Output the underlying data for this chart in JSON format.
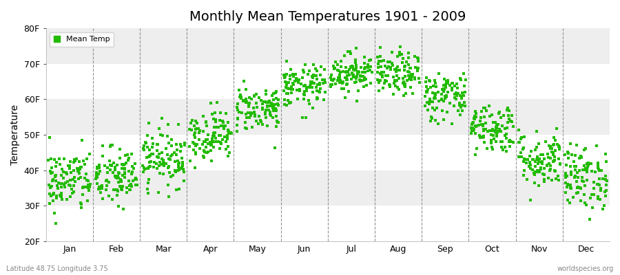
{
  "title": "Monthly Mean Temperatures 1901 - 2009",
  "ylabel": "Temperature",
  "ylim": [
    20,
    80
  ],
  "yticks": [
    20,
    30,
    40,
    50,
    60,
    70,
    80
  ],
  "ytick_labels": [
    "20F",
    "30F",
    "40F",
    "50F",
    "60F",
    "70F",
    "80F"
  ],
  "month_labels": [
    "Jan",
    "Feb",
    "Mar",
    "Apr",
    "May",
    "Jun",
    "Jul",
    "Aug",
    "Sep",
    "Oct",
    "Nov",
    "Dec"
  ],
  "dot_color": "#22bb00",
  "legend_label": "Mean Temp",
  "bottom_left": "Latitude 48.75 Longitude 3.75",
  "bottom_right": "worldspecies.org",
  "bg_color": "#ffffff",
  "plot_bg": "#ffffff",
  "band_colors": [
    "#ffffff",
    "#eeeeee"
  ],
  "mean_temps_f": [
    37.0,
    38.0,
    43.5,
    50.0,
    57.5,
    63.5,
    67.5,
    67.0,
    61.0,
    52.0,
    43.0,
    38.0
  ],
  "std_temps_f": [
    4.5,
    4.2,
    4.0,
    3.5,
    3.2,
    3.0,
    2.8,
    3.0,
    3.5,
    3.5,
    4.0,
    4.5
  ],
  "num_years": 109,
  "seed": 42
}
